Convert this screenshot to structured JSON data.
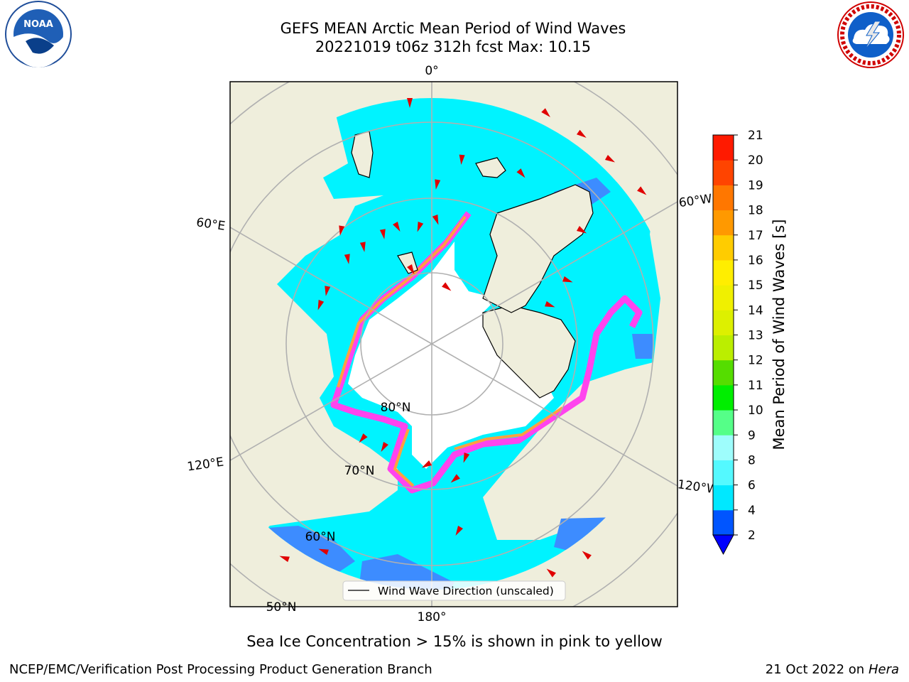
{
  "title": {
    "line1": "GEFS MEAN Arctic Mean Period of Wind Waves",
    "line2": "20221019 t06z 312h fcst   Max: 10.15"
  },
  "logos": {
    "left": {
      "text": "NOAA",
      "icon": "noaa-logo-icon"
    },
    "right": {
      "icon": "national-weather-service-logo-icon"
    }
  },
  "map": {
    "meridian_labels": [
      "0°",
      "60°E",
      "120°E",
      "180°",
      "120°W",
      "60°W"
    ],
    "parallel_labels": [
      "80°N",
      "70°N",
      "60°N",
      "50°N"
    ],
    "legend": {
      "label": "Wind Wave Direction (unscaled)"
    },
    "colors": {
      "land": "#efeedc",
      "ocean_cyan": "#00f3ff",
      "ocean_blue": "#3d8cff",
      "sea_ice_edge": "#ff44ee",
      "ice_pack": "#ffffff",
      "arrows": "#e00000",
      "grid": "#b0b0b0"
    }
  },
  "colorbar": {
    "label": "Mean Period of Wind Waves [s]",
    "ticks": [
      2,
      4,
      6,
      8,
      9,
      10,
      11,
      12,
      13,
      14,
      15,
      16,
      17,
      18,
      19,
      20,
      21
    ],
    "colors": [
      "#0055ff",
      "#00e8ff",
      "#54f9ff",
      "#9efdfc",
      "#55ff88",
      "#00ee00",
      "#55dd00",
      "#bbee00",
      "#ddf000",
      "#f0f000",
      "#ffee00",
      "#ffcc00",
      "#ff9900",
      "#ff7700",
      "#ff4400",
      "#ff1a00",
      "#ff0000"
    ],
    "under_color": "#0000ff"
  },
  "note": "Sea Ice Concentration > 15% is shown in pink to yellow",
  "footer": {
    "left": "NCEP/EMC/Verification Post Processing Product Generation Branch",
    "right_date": "21 Oct 2022 on",
    "right_host": "Hera"
  }
}
